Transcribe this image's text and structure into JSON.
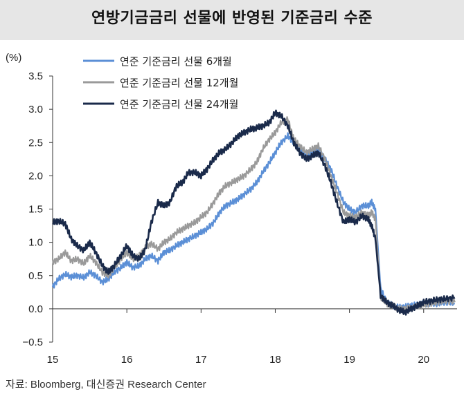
{
  "title": "연방기금금리 선물에 반영된 기준금리 수준",
  "source": "자료: Bloomberg, 대신증권 Research Center",
  "chart_data": {
    "type": "line",
    "title": "연방기금금리 선물에 반영된 기준금리 수준",
    "unit": "(%)",
    "ylim": [
      -0.5,
      3.5
    ],
    "yticks": [
      "3.5",
      "3.0",
      "2.5",
      "2.0",
      "1.5",
      "1.0",
      "0.5",
      "0.0",
      "−0.5"
    ],
    "ytick_values": [
      3.5,
      3.0,
      2.5,
      2.0,
      1.5,
      1.0,
      0.5,
      0.0,
      -0.5
    ],
    "xlim": [
      2015.0,
      2020.45
    ],
    "xticks": [
      "15",
      "16",
      "17",
      "18",
      "19",
      "20"
    ],
    "xtick_values": [
      2015,
      2016,
      2017,
      2018,
      2019,
      2020
    ],
    "grid": false,
    "legend": "top-left",
    "series": [
      {
        "name": "연준 기준금리 선물 6개월",
        "color": "#5b8fd6",
        "x": [
          2015.0,
          2015.08,
          2015.17,
          2015.25,
          2015.33,
          2015.42,
          2015.5,
          2015.58,
          2015.67,
          2015.75,
          2015.83,
          2015.92,
          2016.0,
          2016.08,
          2016.17,
          2016.25,
          2016.33,
          2016.42,
          2016.5,
          2016.58,
          2016.67,
          2016.75,
          2016.83,
          2016.92,
          2017.0,
          2017.08,
          2017.17,
          2017.25,
          2017.33,
          2017.42,
          2017.5,
          2017.58,
          2017.67,
          2017.75,
          2017.83,
          2017.92,
          2018.0,
          2018.08,
          2018.17,
          2018.25,
          2018.33,
          2018.42,
          2018.5,
          2018.58,
          2018.67,
          2018.75,
          2018.83,
          2018.92,
          2019.0,
          2019.08,
          2019.17,
          2019.25,
          2019.3,
          2019.35,
          2019.42,
          2019.5,
          2019.58,
          2019.67,
          2019.75,
          2019.83,
          2019.92,
          2020.0,
          2020.1,
          2020.2,
          2020.3,
          2020.42
        ],
        "values": [
          0.33,
          0.45,
          0.52,
          0.48,
          0.5,
          0.47,
          0.55,
          0.5,
          0.4,
          0.45,
          0.55,
          0.62,
          0.7,
          0.62,
          0.65,
          0.75,
          0.8,
          0.72,
          0.85,
          0.88,
          0.95,
          1.0,
          1.05,
          1.1,
          1.15,
          1.2,
          1.3,
          1.45,
          1.55,
          1.6,
          1.65,
          1.72,
          1.8,
          1.9,
          2.05,
          2.2,
          2.35,
          2.5,
          2.6,
          2.5,
          2.4,
          2.3,
          2.35,
          2.4,
          2.25,
          2.1,
          1.85,
          1.6,
          1.5,
          1.45,
          1.55,
          1.55,
          1.6,
          1.5,
          0.3,
          0.1,
          0.05,
          0.02,
          0.03,
          0.05,
          0.06,
          0.08,
          0.08,
          0.08,
          0.1,
          0.08
        ]
      },
      {
        "name": "연준 기준금리 선물 12개월",
        "color": "#9a9a9a",
        "x": [
          2015.0,
          2015.08,
          2015.17,
          2015.25,
          2015.33,
          2015.42,
          2015.5,
          2015.58,
          2015.67,
          2015.75,
          2015.83,
          2015.92,
          2016.0,
          2016.08,
          2016.17,
          2016.25,
          2016.33,
          2016.42,
          2016.5,
          2016.58,
          2016.67,
          2016.75,
          2016.83,
          2016.92,
          2017.0,
          2017.08,
          2017.17,
          2017.25,
          2017.33,
          2017.42,
          2017.5,
          2017.58,
          2017.67,
          2017.75,
          2017.83,
          2017.92,
          2018.0,
          2018.08,
          2018.17,
          2018.25,
          2018.33,
          2018.42,
          2018.5,
          2018.58,
          2018.67,
          2018.75,
          2018.83,
          2018.92,
          2019.0,
          2019.08,
          2019.17,
          2019.25,
          2019.3,
          2019.35,
          2019.42,
          2019.5,
          2019.58,
          2019.67,
          2019.75,
          2019.83,
          2019.92,
          2020.0,
          2020.1,
          2020.2,
          2020.3,
          2020.42
        ],
        "values": [
          0.7,
          0.75,
          0.85,
          0.72,
          0.75,
          0.68,
          0.8,
          0.7,
          0.55,
          0.5,
          0.62,
          0.75,
          0.85,
          0.75,
          0.8,
          0.92,
          0.98,
          0.9,
          1.0,
          1.05,
          1.15,
          1.2,
          1.25,
          1.3,
          1.38,
          1.45,
          1.6,
          1.75,
          1.85,
          1.9,
          1.95,
          2.0,
          2.1,
          2.2,
          2.4,
          2.55,
          2.65,
          2.8,
          2.85,
          2.55,
          2.45,
          2.35,
          2.4,
          2.45,
          2.25,
          2.0,
          1.75,
          1.45,
          1.4,
          1.38,
          1.45,
          1.4,
          1.45,
          1.35,
          0.18,
          0.08,
          0.05,
          0.0,
          0.0,
          0.02,
          0.04,
          0.06,
          0.08,
          0.1,
          0.12,
          0.1
        ]
      },
      {
        "name": "연준 기준금리 선물 24개월",
        "color": "#1a2a4a",
        "x": [
          2015.0,
          2015.08,
          2015.17,
          2015.25,
          2015.33,
          2015.42,
          2015.5,
          2015.58,
          2015.67,
          2015.75,
          2015.83,
          2015.92,
          2016.0,
          2016.08,
          2016.17,
          2016.25,
          2016.33,
          2016.42,
          2016.5,
          2016.58,
          2016.67,
          2016.75,
          2016.83,
          2016.92,
          2017.0,
          2017.08,
          2017.17,
          2017.25,
          2017.33,
          2017.42,
          2017.5,
          2017.58,
          2017.67,
          2017.75,
          2017.83,
          2017.92,
          2018.0,
          2018.08,
          2018.17,
          2018.25,
          2018.33,
          2018.42,
          2018.5,
          2018.58,
          2018.67,
          2018.75,
          2018.83,
          2018.92,
          2019.0,
          2019.08,
          2019.17,
          2019.25,
          2019.3,
          2019.35,
          2019.42,
          2019.5,
          2019.58,
          2019.67,
          2019.75,
          2019.83,
          2019.92,
          2020.0,
          2020.1,
          2020.2,
          2020.3,
          2020.42
        ],
        "values": [
          1.3,
          1.32,
          1.28,
          1.05,
          0.95,
          0.88,
          1.0,
          0.85,
          0.65,
          0.55,
          0.65,
          0.8,
          0.95,
          0.8,
          0.75,
          0.9,
          1.3,
          1.6,
          1.55,
          1.6,
          1.85,
          1.9,
          2.05,
          2.05,
          2.0,
          2.1,
          2.25,
          2.35,
          2.4,
          2.5,
          2.6,
          2.65,
          2.7,
          2.72,
          2.75,
          2.8,
          2.95,
          2.9,
          2.75,
          2.5,
          2.35,
          2.25,
          2.3,
          2.35,
          2.15,
          1.9,
          1.6,
          1.3,
          1.35,
          1.3,
          1.4,
          1.35,
          1.25,
          1.05,
          0.2,
          0.1,
          0.05,
          -0.02,
          -0.05,
          0.0,
          0.05,
          0.1,
          0.12,
          0.14,
          0.15,
          0.17
        ]
      }
    ]
  }
}
